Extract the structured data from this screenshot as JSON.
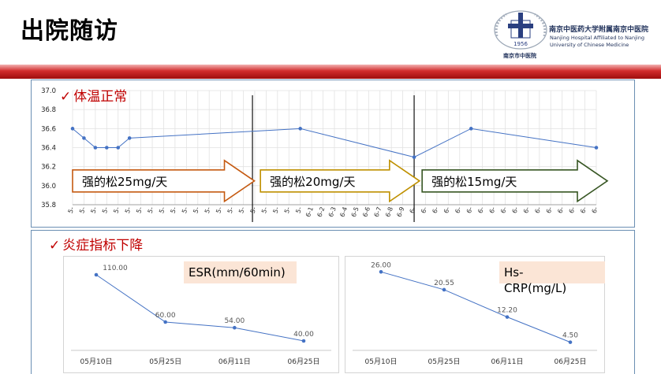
{
  "slide": {
    "title": "出院随访",
    "logo": {
      "name_cn": "南京中医药大学附属南京中医院",
      "name_en_1": "Nanjing Hospital Affiliated to Nanjing",
      "name_en_2": "University of Chinese Medicine",
      "seal_text": "南京市中医院",
      "year": "1956"
    },
    "section1_label": "体温正常",
    "section2_label": "炎症指标下降",
    "check_glyph": "✓"
  },
  "colors": {
    "line": "#4472c4",
    "title_red": "#c00000",
    "arrow1": "#c55a11",
    "arrow2": "#bf9000",
    "arrow3": "#375623",
    "label_bg": "#fbe5d6"
  },
  "chart_data": [
    {
      "type": "line",
      "name": "temperature",
      "ylim": [
        35.8,
        37.0
      ],
      "yticks": [
        35.8,
        36.0,
        36.2,
        36.4,
        36.6,
        36.8,
        37.0
      ],
      "x": [
        0,
        1,
        2,
        3,
        4,
        5,
        20,
        30,
        35,
        46
      ],
      "values": [
        36.6,
        36.5,
        36.4,
        36.4,
        36.4,
        36.5,
        36.6,
        36.3,
        36.6,
        36.4
      ],
      "xtick_labels": [
        "5-",
        "5-",
        "5-",
        "5-",
        "5-",
        "5-",
        "5-",
        "5-",
        "5-",
        "5-",
        "5-",
        "5-",
        "5-",
        "5-",
        "5-",
        "5-",
        "5-",
        "5-",
        "5-",
        "5-",
        "5-",
        "6-",
        "6-",
        "6-",
        "6-",
        "6-",
        "6-",
        "6-",
        "6-",
        "6-",
        "6-",
        "6-",
        "6-",
        "6-",
        "6-",
        "6-",
        "6-",
        "6-",
        "6-",
        "6-",
        "6-",
        "6-",
        "6-",
        "6-",
        "6-",
        "6-",
        "6-"
      ],
      "xtick_suffix": [
        "",
        "",
        "",
        "",
        "",
        "",
        "",
        "",
        "",
        "",
        "",
        "",
        "",
        "",
        "",
        "",
        "",
        "",
        "",
        "",
        "",
        "1",
        "2",
        "3",
        "4",
        "5",
        "6",
        "7",
        "8",
        "9",
        "",
        "",
        "",
        "",
        "",
        "",
        "",
        "",
        "",
        "",
        "",
        "",
        "",
        "",
        "",
        "",
        ""
      ],
      "dividers": [
        15.8,
        30.0
      ],
      "arrows": [
        {
          "label": "强的松25mg/天",
          "from": 0,
          "to": 15
        },
        {
          "label": "强的松20mg/天",
          "from": 16.5,
          "to": 29.5
        },
        {
          "label": "强的松15mg/天",
          "from": 30.7,
          "to": 46
        }
      ]
    },
    {
      "type": "line",
      "title": "ESR(mm/60min)",
      "categories": [
        "05月10日",
        "05月25日",
        "06月11日",
        "06月25日"
      ],
      "values": [
        110.0,
        60.0,
        54.0,
        40.0
      ],
      "value_labels": [
        "110.00",
        "60.00",
        "54.00",
        "40.00"
      ],
      "ylim": [
        30,
        120
      ]
    },
    {
      "type": "line",
      "title": "Hs-CRP(mg/L)",
      "title_lines": [
        "Hs-",
        "CRP(mg/L)"
      ],
      "categories": [
        "05月10日",
        "05月25日",
        "06月11日",
        "06月25日"
      ],
      "values": [
        26.0,
        20.55,
        12.2,
        4.5
      ],
      "value_labels": [
        "26.00",
        "20.55",
        "12.20",
        "4.50"
      ],
      "ylim": [
        2,
        28
      ]
    }
  ]
}
